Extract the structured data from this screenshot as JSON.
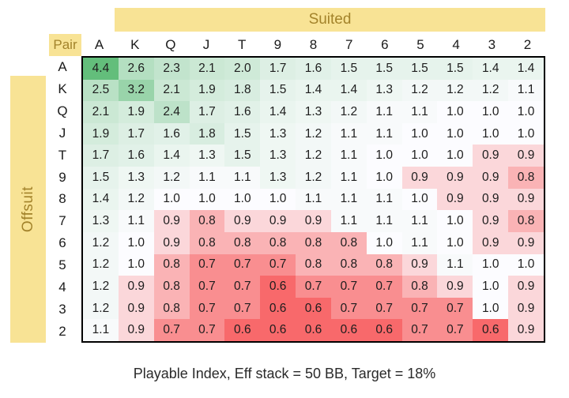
{
  "colors": {
    "header_band_bg": "#F8E395",
    "header_band_text": "#A3832B",
    "cell_text": "#1d1d1d",
    "grid_border": "#000000",
    "scale_min_color": "#F8696B",
    "scale_mid_color": "#FCFCFF",
    "scale_max_color": "#63BE7B"
  },
  "chart_data": {
    "type": "heatmap",
    "title": "Playable Index, Eff stack = 50 BB, Target = 18%",
    "suited_label": "Suited",
    "offsuit_label": "Offsuit",
    "pair_label": "Pair",
    "x_categories": [
      "A",
      "K",
      "Q",
      "J",
      "T",
      "9",
      "8",
      "7",
      "6",
      "5",
      "4",
      "3",
      "2"
    ],
    "y_categories": [
      "A",
      "K",
      "Q",
      "J",
      "T",
      "9",
      "8",
      "7",
      "6",
      "5",
      "4",
      "3",
      "2"
    ],
    "value_format": "0.0",
    "layout": {
      "suited_region": "upper-right triangle",
      "offsuit_region": "lower-left triangle",
      "pairs_region": "diagonal",
      "legend": "none",
      "gridlines": "off"
    },
    "color_scale": {
      "min": 0.6,
      "mid": 1.0,
      "max": 4.4
    },
    "values": [
      [
        4.4,
        2.6,
        2.3,
        2.1,
        2.0,
        1.7,
        1.6,
        1.5,
        1.5,
        1.5,
        1.5,
        1.4,
        1.4
      ],
      [
        2.5,
        3.2,
        2.1,
        1.9,
        1.8,
        1.5,
        1.4,
        1.4,
        1.3,
        1.2,
        1.2,
        1.2,
        1.1
      ],
      [
        2.1,
        1.9,
        2.4,
        1.7,
        1.6,
        1.4,
        1.3,
        1.2,
        1.1,
        1.1,
        1.0,
        1.0,
        1.0
      ],
      [
        1.9,
        1.7,
        1.6,
        1.8,
        1.5,
        1.3,
        1.2,
        1.1,
        1.1,
        1.0,
        1.0,
        1.0,
        1.0
      ],
      [
        1.7,
        1.6,
        1.4,
        1.3,
        1.5,
        1.3,
        1.2,
        1.1,
        1.0,
        1.0,
        1.0,
        0.9,
        0.9
      ],
      [
        1.5,
        1.3,
        1.2,
        1.1,
        1.1,
        1.3,
        1.2,
        1.1,
        1.0,
        0.9,
        0.9,
        0.9,
        0.8
      ],
      [
        1.4,
        1.2,
        1.0,
        1.0,
        1.0,
        1.0,
        1.1,
        1.1,
        1.1,
        1.0,
        0.9,
        0.9,
        0.9
      ],
      [
        1.3,
        1.1,
        0.9,
        0.8,
        0.9,
        0.9,
        0.9,
        1.1,
        1.1,
        1.1,
        1.0,
        0.9,
        0.8
      ],
      [
        1.2,
        1.0,
        0.9,
        0.8,
        0.8,
        0.8,
        0.8,
        0.8,
        1.0,
        1.1,
        1.0,
        0.9,
        0.9
      ],
      [
        1.2,
        1.0,
        0.8,
        0.7,
        0.7,
        0.7,
        0.8,
        0.8,
        0.8,
        0.9,
        1.1,
        1.0,
        1.0
      ],
      [
        1.2,
        0.9,
        0.8,
        0.7,
        0.7,
        0.6,
        0.7,
        0.7,
        0.7,
        0.8,
        0.9,
        1.0,
        0.9
      ],
      [
        1.2,
        0.9,
        0.8,
        0.7,
        0.7,
        0.6,
        0.6,
        0.7,
        0.7,
        0.7,
        0.7,
        1.0,
        0.9
      ],
      [
        1.1,
        0.9,
        0.7,
        0.7,
        0.6,
        0.6,
        0.6,
        0.6,
        0.6,
        0.7,
        0.7,
        0.6,
        0.9
      ]
    ]
  }
}
